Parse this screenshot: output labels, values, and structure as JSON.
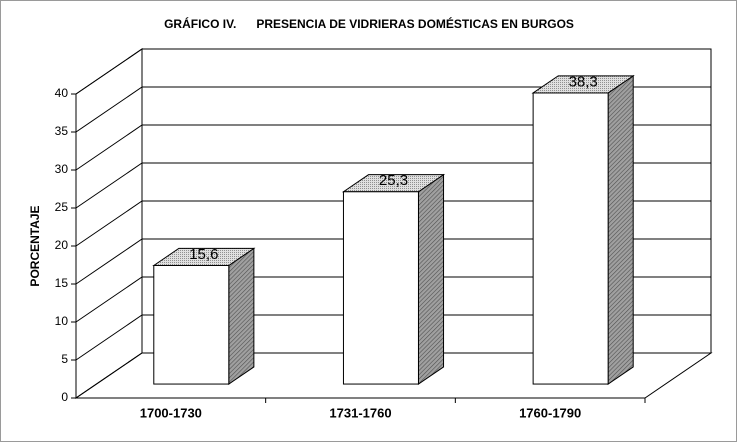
{
  "chart_data": {
    "type": "bar3d",
    "title": "GRÁFICO IV.      PRESENCIA DE VIDRIERAS DOMÉSTICAS EN BURGOS",
    "y_label": "PORCENTAJE",
    "categories": [
      "1700-1730",
      "1731-1760",
      "1760-1790"
    ],
    "values": [
      15.6,
      25.3,
      38.3
    ],
    "value_labels": [
      "15,6",
      "25,3",
      "38,3"
    ],
    "color": "#ffffff",
    "ylim": [
      0,
      40
    ],
    "yticks": [
      0,
      5,
      10,
      15,
      20,
      25,
      30,
      35,
      40
    ],
    "grid": true
  }
}
